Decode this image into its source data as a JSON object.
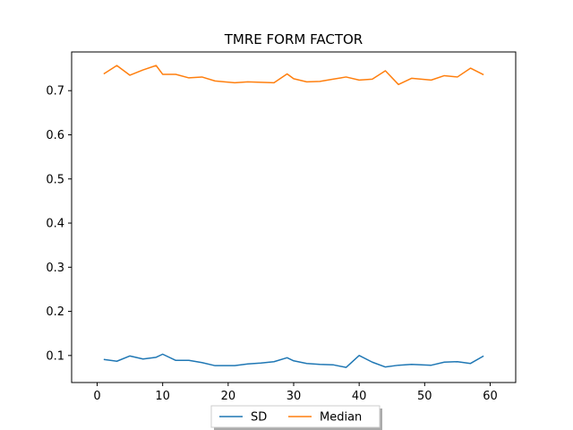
{
  "chart_data": {
    "type": "line",
    "title": "TMRE FORM FACTOR",
    "xlabel": "",
    "ylabel": "",
    "xlim": [
      -3.9,
      63.9
    ],
    "ylim": [
      0.0388,
      0.7877
    ],
    "x_ticks": [
      0,
      10,
      20,
      30,
      40,
      50,
      60
    ],
    "y_ticks": [
      0.1,
      0.2,
      0.3,
      0.4,
      0.5,
      0.6,
      0.7
    ],
    "grid": false,
    "legend_position": "bottom-center",
    "x": [
      1,
      3,
      5,
      7,
      9,
      10,
      12,
      14,
      16,
      18,
      21,
      23,
      25,
      27,
      29,
      30,
      32,
      34,
      36,
      38,
      40,
      42,
      44,
      46,
      48,
      51,
      53,
      55,
      57,
      59
    ],
    "series": [
      {
        "name": "SD",
        "color": "#1f77b4",
        "values": [
          0.091,
          0.087,
          0.099,
          0.092,
          0.096,
          0.103,
          0.089,
          0.089,
          0.084,
          0.077,
          0.077,
          0.081,
          0.083,
          0.086,
          0.095,
          0.088,
          0.082,
          0.08,
          0.079,
          0.073,
          0.1,
          0.085,
          0.074,
          0.078,
          0.08,
          0.078,
          0.085,
          0.086,
          0.082,
          0.099
        ]
      },
      {
        "name": "Median",
        "color": "#ff7f0e",
        "values": [
          0.738,
          0.757,
          0.735,
          0.747,
          0.757,
          0.737,
          0.737,
          0.729,
          0.731,
          0.722,
          0.718,
          0.72,
          0.719,
          0.718,
          0.738,
          0.727,
          0.72,
          0.721,
          0.726,
          0.731,
          0.724,
          0.726,
          0.745,
          0.714,
          0.728,
          0.724,
          0.734,
          0.731,
          0.751,
          0.736
        ]
      }
    ]
  }
}
